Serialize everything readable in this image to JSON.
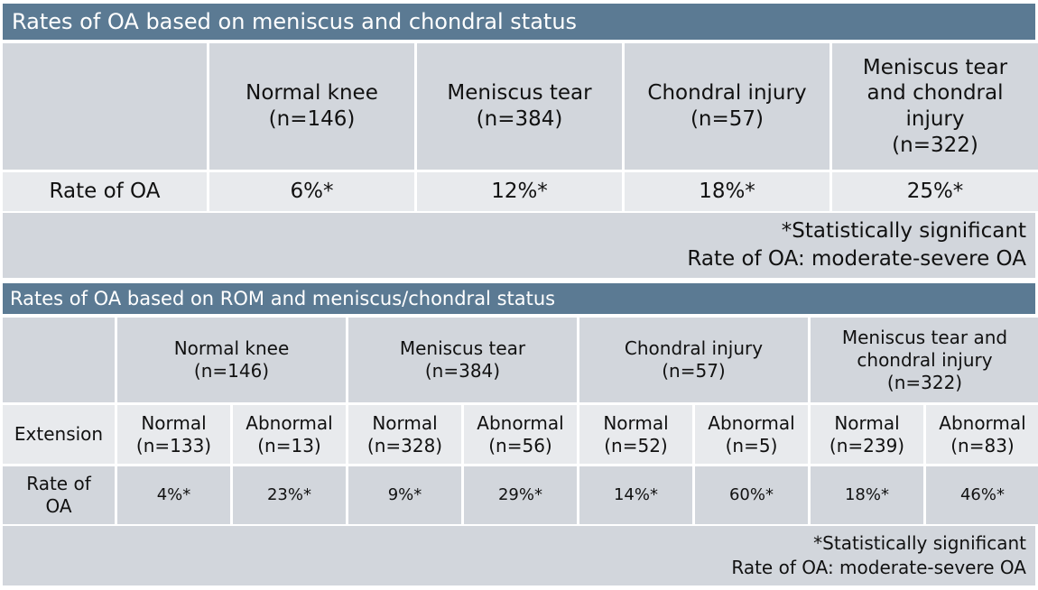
{
  "table1": {
    "title": "Rates of OA based on meniscus and chondral status",
    "columns": [
      {
        "label": "Normal knee",
        "n": "(n=146)"
      },
      {
        "label": "Meniscus tear",
        "n": "(n=384)"
      },
      {
        "label": "Chondral injury",
        "n": "(n=57)"
      },
      {
        "label": "Meniscus tear and chondral injury",
        "n": "(n=322)"
      }
    ],
    "row_label": "Rate of OA",
    "values": [
      "6%*",
      "12%*",
      "18%*",
      "25%*"
    ],
    "footnote1": "*Statistically significant",
    "footnote2": "Rate of OA: moderate-severe OA"
  },
  "table2": {
    "title": "Rates of OA based on ROM and meniscus/chondral status",
    "groups": [
      {
        "label": "Normal knee",
        "n": "(n=146)"
      },
      {
        "label": "Meniscus tear",
        "n": "(n=384)"
      },
      {
        "label": "Chondral injury",
        "n": "(n=57)"
      },
      {
        "label": "Meniscus tear and chondral injury",
        "n": "(n=322)"
      }
    ],
    "extension_label": "Extension",
    "sub": [
      {
        "label": "Normal",
        "n": "(n=133)"
      },
      {
        "label": "Abnormal",
        "n": "(n=13)"
      },
      {
        "label": "Normal",
        "n": "(n=328)"
      },
      {
        "label": "Abnormal",
        "n": "(n=56)"
      },
      {
        "label": "Normal",
        "n": "(n=52)"
      },
      {
        "label": "Abnormal",
        "n": "(n=5)"
      },
      {
        "label": "Normal",
        "n": "(n=239)"
      },
      {
        "label": "Abnormal",
        "n": "(n=83)"
      }
    ],
    "rate_label": "Rate of OA",
    "values": [
      "4%*",
      "23%*",
      "9%*",
      "29%*",
      "14%*",
      "60%*",
      "18%*",
      "46%*"
    ],
    "footnote1": "*Statistically significant",
    "footnote2": "Rate of OA: moderate-severe OA"
  }
}
